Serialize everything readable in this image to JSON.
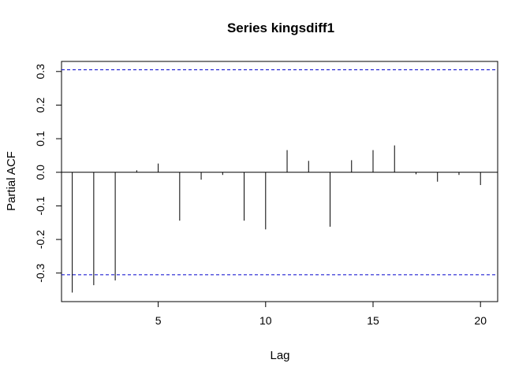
{
  "chart_data": {
    "type": "bar",
    "title": "Series  kingsdiff1",
    "xlabel": "Lag",
    "ylabel": "Partial ACF",
    "xlim": [
      0.5,
      20.8
    ],
    "ylim": [
      -0.385,
      0.33
    ],
    "x_ticks": [
      5,
      10,
      15,
      20
    ],
    "y_ticks": [
      -0.3,
      -0.2,
      -0.1,
      0.0,
      0.1,
      0.2,
      0.3
    ],
    "y_tick_labels": [
      "-0.3",
      "-0.2",
      "-0.1",
      "0.0",
      "0.1",
      "0.2",
      "0.3"
    ],
    "confidence_bound": 0.305,
    "confidence_color": "#0000cc",
    "bar_color": "#000000",
    "lags": [
      1,
      2,
      3,
      4,
      5,
      6,
      7,
      8,
      9,
      10,
      11,
      12,
      13,
      14,
      15,
      16,
      17,
      18,
      19,
      20
    ],
    "values": [
      -0.358,
      -0.336,
      -0.322,
      0.006,
      0.026,
      -0.144,
      -0.022,
      -0.008,
      -0.144,
      -0.17,
      0.066,
      0.034,
      -0.162,
      0.036,
      0.066,
      0.08,
      -0.006,
      -0.028,
      -0.008,
      -0.038
    ],
    "grid": false
  }
}
